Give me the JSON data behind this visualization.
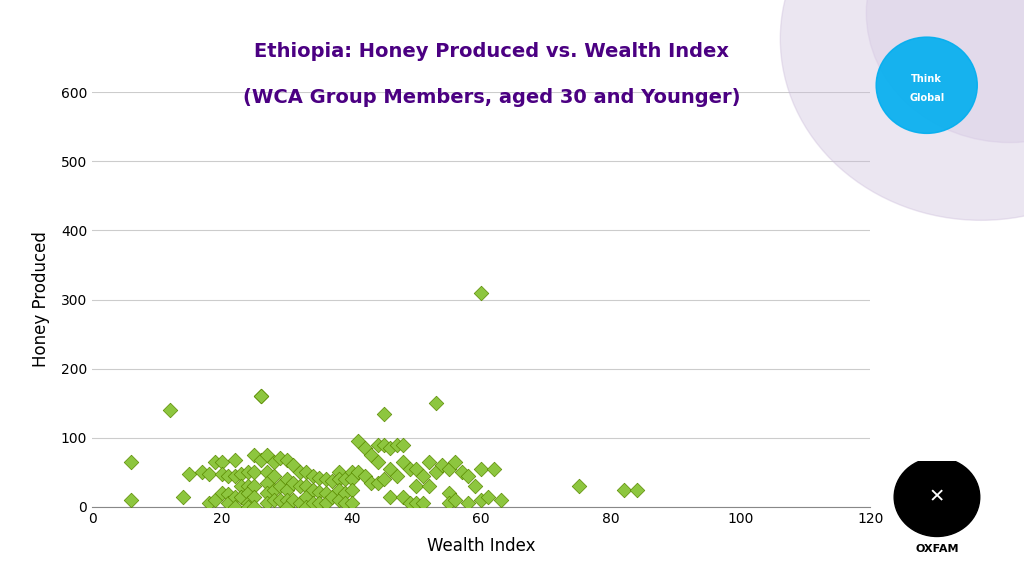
{
  "title_line1": "Ethiopia: Honey Produced vs. Wealth Index",
  "title_line2": "(WCA Group Members, aged 30 and Younger)",
  "xlabel": "Wealth Index",
  "ylabel": "Honey Produced",
  "xlim": [
    0,
    120
  ],
  "ylim": [
    0,
    600
  ],
  "xticks": [
    0,
    20,
    40,
    60,
    80,
    100,
    120
  ],
  "yticks": [
    0,
    100,
    200,
    300,
    400,
    500,
    600
  ],
  "marker_color": "#8DC63F",
  "marker_edge_color": "#5A8A00",
  "background_color": "#FFFFFF",
  "title_color": "#4B0082",
  "scatter_x": [
    6,
    6,
    12,
    14,
    15,
    17,
    18,
    18,
    19,
    19,
    20,
    20,
    20,
    21,
    21,
    21,
    22,
    22,
    22,
    22,
    23,
    23,
    23,
    24,
    24,
    24,
    24,
    24,
    25,
    25,
    25,
    25,
    25,
    26,
    26,
    26,
    27,
    27,
    27,
    27,
    27,
    28,
    28,
    28,
    28,
    29,
    29,
    29,
    30,
    30,
    30,
    30,
    30,
    31,
    31,
    31,
    32,
    32,
    32,
    33,
    33,
    33,
    33,
    34,
    34,
    34,
    35,
    35,
    35,
    36,
    36,
    36,
    37,
    37,
    38,
    38,
    38,
    38,
    39,
    39,
    39,
    40,
    40,
    40,
    40,
    41,
    41,
    42,
    42,
    43,
    43,
    44,
    44,
    44,
    45,
    45,
    45,
    46,
    46,
    46,
    47,
    47,
    48,
    48,
    48,
    49,
    49,
    50,
    50,
    50,
    51,
    51,
    52,
    52,
    53,
    53,
    54,
    55,
    55,
    55,
    56,
    56,
    57,
    58,
    58,
    59,
    60,
    60,
    60,
    61,
    62,
    63,
    75,
    82,
    84
  ],
  "scatter_y": [
    65,
    10,
    140,
    15,
    48,
    50,
    48,
    5,
    65,
    10,
    65,
    48,
    20,
    45,
    18,
    5,
    45,
    68,
    15,
    0,
    48,
    30,
    15,
    50,
    30,
    20,
    5,
    0,
    75,
    50,
    30,
    15,
    0,
    160,
    160,
    68,
    75,
    50,
    35,
    20,
    5,
    65,
    45,
    25,
    10,
    70,
    30,
    10,
    68,
    40,
    25,
    10,
    0,
    60,
    35,
    10,
    50,
    30,
    5,
    50,
    30,
    15,
    0,
    45,
    25,
    5,
    42,
    22,
    5,
    40,
    20,
    5,
    38,
    15,
    50,
    40,
    25,
    10,
    40,
    20,
    5,
    50,
    40,
    25,
    5,
    95,
    50,
    85,
    45,
    75,
    35,
    90,
    65,
    35,
    135,
    90,
    40,
    85,
    55,
    15,
    90,
    45,
    90,
    65,
    15,
    55,
    5,
    55,
    30,
    5,
    45,
    5,
    65,
    30,
    150,
    50,
    60,
    55,
    20,
    5,
    65,
    10,
    50,
    45,
    5,
    30,
    310,
    55,
    10,
    15,
    55,
    10,
    30,
    25,
    25
  ]
}
